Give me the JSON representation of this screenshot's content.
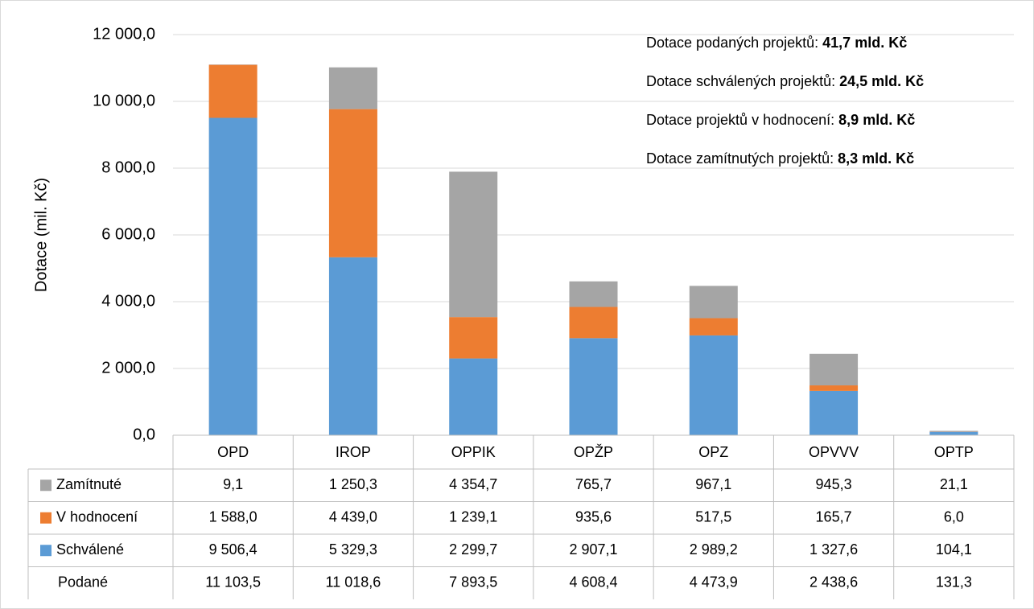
{
  "chart_data": {
    "type": "stacked_bar",
    "y_label": "Dotace (mil. Kč)",
    "categories": [
      "OPD",
      "IROP",
      "OPPIK",
      "OPŽP",
      "OPZ",
      "OPVVV",
      "OPTP"
    ],
    "series": [
      {
        "name": "Schválené",
        "color": "#5b9bd5",
        "values": [
          9506.4,
          5329.3,
          2299.7,
          2907.1,
          2989.2,
          1327.6,
          104.1
        ],
        "value_labels": [
          "9 506,4",
          "5 329,3",
          "2 299,7",
          "2 907,1",
          "2 989,2",
          "1 327,6",
          "104,1"
        ]
      },
      {
        "name": "V hodnocení",
        "color": "#ed7d31",
        "values": [
          1588.0,
          4439.0,
          1239.1,
          935.6,
          517.5,
          165.7,
          6.0
        ],
        "value_labels": [
          "1 588,0",
          "4 439,0",
          "1 239,1",
          "935,6",
          "517,5",
          "165,7",
          "6,0"
        ]
      },
      {
        "name": "Zamítnuté",
        "color": "#a5a5a5",
        "values": [
          9.1,
          1250.3,
          4354.7,
          765.7,
          967.1,
          945.3,
          21.1
        ],
        "value_labels": [
          "9,1",
          "1 250,3",
          "4 354,7",
          "765,7",
          "967,1",
          "945,3",
          "21,1"
        ]
      }
    ],
    "totals": {
      "name": "Podané",
      "values": [
        11103.5,
        11018.6,
        7893.5,
        4608.4,
        4473.9,
        2438.6,
        131.3
      ],
      "value_labels": [
        "11 103,5",
        "11 018,6",
        "7 893,5",
        "4 608,4",
        "4 473,9",
        "2 438,6",
        "131,3"
      ]
    },
    "ylim": [
      0,
      12000
    ],
    "yticks": [
      {
        "value": 0,
        "label": "0,0"
      },
      {
        "value": 2000,
        "label": "2 000,0"
      },
      {
        "value": 4000,
        "label": "4 000,0"
      },
      {
        "value": 6000,
        "label": "6 000,0"
      },
      {
        "value": 8000,
        "label": "8 000,0"
      },
      {
        "value": 10000,
        "label": "10 000,0"
      },
      {
        "value": 12000,
        "label": "12 000,0"
      }
    ],
    "grid": true,
    "annotations": [
      {
        "text": "Dotace podaných projektů:",
        "bold": "41,7 mld. Kč"
      },
      {
        "text": "Dotace schválených projektů:",
        "bold": "24,5 mld. Kč"
      },
      {
        "text": "Dotace projektů v hodnocení:",
        "bold": "8,9 mld. Kč"
      },
      {
        "text": "Dotace zamítnutých projektů:",
        "bold": "8,3 mld. Kč"
      }
    ]
  }
}
